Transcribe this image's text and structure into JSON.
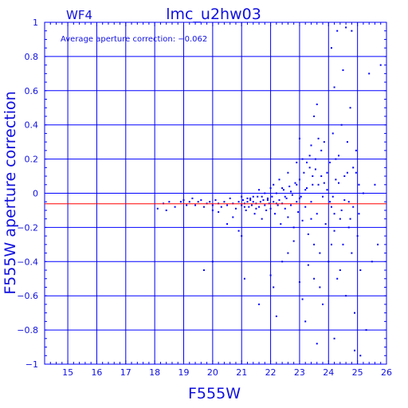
{
  "chart_data": {
    "type": "scatter",
    "title": "lmc_u2hw03",
    "panel_label": "WF4",
    "annotation": "Average aperture correction: −0.062",
    "xlabel": "F555W",
    "ylabel": "F555W aperture correction",
    "xlim": [
      14.2,
      26.0
    ],
    "ylim": [
      -1.0,
      1.0
    ],
    "x_ticks": [
      15,
      16,
      17,
      18,
      19,
      20,
      21,
      22,
      23,
      24,
      25,
      26
    ],
    "y_ticks": [
      -1,
      -0.8,
      -0.6,
      -0.4,
      -0.2,
      0,
      0.2,
      0.4,
      0.6,
      0.8,
      1
    ],
    "y_tick_labels": [
      "−1",
      "−0.8",
      "−0.6",
      "−0.4",
      "−0.2",
      "0",
      "0.2",
      "0.4",
      "0.6",
      "0.8",
      "1"
    ],
    "grid": true,
    "reference_line": {
      "y": -0.062,
      "color": "#ff0000"
    },
    "series_color": "#0000ff",
    "points": [
      [
        18.1,
        -0.09
      ],
      [
        18.3,
        -0.06
      ],
      [
        18.4,
        -0.1
      ],
      [
        18.5,
        -0.05
      ],
      [
        18.7,
        -0.08
      ],
      [
        18.9,
        -0.05
      ],
      [
        19.0,
        -0.04
      ],
      [
        19.1,
        -0.07
      ],
      [
        19.2,
        -0.05
      ],
      [
        19.3,
        -0.03
      ],
      [
        19.4,
        -0.07
      ],
      [
        19.5,
        -0.05
      ],
      [
        19.6,
        -0.04
      ],
      [
        19.7,
        -0.08
      ],
      [
        19.8,
        -0.06
      ],
      [
        19.9,
        -0.05
      ],
      [
        20.0,
        -0.07
      ],
      [
        20.1,
        -0.04
      ],
      [
        20.2,
        -0.06
      ],
      [
        20.3,
        -0.08
      ],
      [
        20.4,
        -0.05
      ],
      [
        20.5,
        -0.07
      ],
      [
        20.6,
        -0.03
      ],
      [
        20.7,
        -0.06
      ],
      [
        20.8,
        -0.09
      ],
      [
        20.9,
        -0.05
      ],
      [
        21.0,
        -0.07
      ],
      [
        21.05,
        -0.04
      ],
      [
        21.1,
        -0.06
      ],
      [
        21.15,
        -0.1
      ],
      [
        21.2,
        -0.05
      ],
      [
        21.25,
        -0.08
      ],
      [
        21.3,
        -0.03
      ],
      [
        21.35,
        -0.07
      ],
      [
        21.4,
        -0.05
      ],
      [
        21.45,
        -0.12
      ],
      [
        21.5,
        -0.06
      ],
      [
        21.55,
        -0.02
      ],
      [
        21.6,
        -0.08
      ],
      [
        21.65,
        -0.05
      ],
      [
        21.7,
        -0.15
      ],
      [
        21.75,
        -0.04
      ],
      [
        21.8,
        -0.07
      ],
      [
        21.85,
        -0.1
      ],
      [
        21.9,
        -0.03
      ],
      [
        21.95,
        -0.06
      ],
      [
        22.0,
        -0.09
      ],
      [
        22.05,
        -0.02
      ],
      [
        22.1,
        -0.05
      ],
      [
        22.15,
        -0.12
      ],
      [
        22.2,
        0.0
      ],
      [
        22.25,
        -0.07
      ],
      [
        22.3,
        -0.04
      ],
      [
        22.35,
        -0.18
      ],
      [
        22.4,
        -0.06
      ],
      [
        22.45,
        0.02
      ],
      [
        22.5,
        -0.09
      ],
      [
        22.55,
        -0.03
      ],
      [
        22.6,
        -0.14
      ],
      [
        22.65,
        0.04
      ],
      [
        22.7,
        -0.07
      ],
      [
        22.75,
        -0.01
      ],
      [
        22.8,
        -0.2
      ],
      [
        22.85,
        0.06
      ],
      [
        22.9,
        -0.05
      ],
      [
        22.95,
        -0.11
      ],
      [
        23.0,
        0.08
      ],
      [
        23.05,
        -0.02
      ],
      [
        23.1,
        -0.16
      ],
      [
        23.15,
        0.12
      ],
      [
        23.2,
        -0.08
      ],
      [
        23.25,
        0.03
      ],
      [
        23.3,
        -0.24
      ],
      [
        23.35,
        0.15
      ],
      [
        23.4,
        -0.05
      ],
      [
        23.45,
        0.1
      ],
      [
        23.5,
        -0.3
      ],
      [
        23.55,
        0.2
      ],
      [
        23.6,
        -0.12
      ],
      [
        23.65,
        0.05
      ],
      [
        23.7,
        -0.35
      ],
      [
        23.75,
        0.25
      ],
      [
        23.8,
        -0.02
      ],
      [
        23.85,
        0.3
      ],
      [
        23.9,
        -0.18
      ],
      [
        23.95,
        0.12
      ],
      [
        24.0,
        -0.4
      ],
      [
        24.05,
        0.18
      ],
      [
        24.1,
        -0.08
      ],
      [
        24.15,
        0.35
      ],
      [
        24.2,
        -0.22
      ],
      [
        24.25,
        0.08
      ],
      [
        24.3,
        -0.5
      ],
      [
        24.35,
        0.22
      ],
      [
        24.4,
        -0.15
      ],
      [
        24.45,
        0.4
      ],
      [
        24.5,
        -0.3
      ],
      [
        24.55,
        0.1
      ],
      [
        24.6,
        -0.6
      ],
      [
        24.65,
        0.3
      ],
      [
        24.7,
        -0.05
      ],
      [
        24.75,
        0.5
      ],
      [
        24.8,
        -0.35
      ],
      [
        24.85,
        0.15
      ],
      [
        24.9,
        -0.7
      ],
      [
        24.95,
        0.25
      ],
      [
        25.0,
        -0.25
      ],
      [
        25.05,
        0.05
      ],
      [
        25.1,
        -0.45
      ],
      [
        25.2,
        0.0
      ],
      [
        25.3,
        -0.8
      ],
      [
        25.5,
        -0.4
      ],
      [
        25.7,
        -0.3
      ],
      [
        25.8,
        0.75
      ],
      [
        25.6,
        0.05
      ],
      [
        25.4,
        0.7
      ],
      [
        24.8,
        0.95
      ],
      [
        24.6,
        0.97
      ],
      [
        24.3,
        0.95
      ],
      [
        24.1,
        0.85
      ],
      [
        24.5,
        0.72
      ],
      [
        24.2,
        0.62
      ],
      [
        23.6,
        0.52
      ],
      [
        23.5,
        0.45
      ],
      [
        23.0,
        0.32
      ],
      [
        23.4,
        0.28
      ],
      [
        22.9,
        0.18
      ],
      [
        22.6,
        0.12
      ],
      [
        22.3,
        0.08
      ],
      [
        22.0,
        0.03
      ],
      [
        21.8,
        0.0
      ],
      [
        21.6,
        0.02
      ],
      [
        21.4,
        -0.02
      ],
      [
        21.2,
        -0.03
      ],
      [
        21.0,
        -0.25
      ],
      [
        20.9,
        -0.22
      ],
      [
        20.7,
        -0.14
      ],
      [
        20.5,
        -0.18
      ],
      [
        20.2,
        -0.11
      ],
      [
        20.0,
        -0.1
      ],
      [
        19.7,
        -0.45
      ],
      [
        20.0,
        -0.4
      ],
      [
        21.1,
        -0.5
      ],
      [
        21.6,
        -0.65
      ],
      [
        22.0,
        -0.48
      ],
      [
        22.1,
        -0.55
      ],
      [
        22.2,
        -0.72
      ],
      [
        22.4,
        -0.4
      ],
      [
        22.6,
        -0.35
      ],
      [
        22.8,
        -0.28
      ],
      [
        23.0,
        -0.52
      ],
      [
        23.1,
        -0.62
      ],
      [
        23.2,
        -0.75
      ],
      [
        23.3,
        -0.42
      ],
      [
        23.6,
        -0.88
      ],
      [
        23.7,
        -0.55
      ],
      [
        24.1,
        -0.3
      ],
      [
        24.2,
        -0.12
      ],
      [
        24.4,
        -0.45
      ],
      [
        24.7,
        -0.2
      ],
      [
        24.9,
        -0.92
      ],
      [
        25.1,
        -0.95
      ],
      [
        24.2,
        -0.85
      ],
      [
        23.8,
        -0.65
      ],
      [
        23.5,
        -0.5
      ],
      [
        23.4,
        -0.15
      ],
      [
        23.2,
        0.02
      ],
      [
        23.0,
        -0.03
      ],
      [
        22.9,
        0.05
      ],
      [
        22.7,
        0.01
      ],
      [
        22.5,
        -0.02
      ],
      [
        22.4,
        0.03
      ],
      [
        22.2,
        -0.06
      ],
      [
        22.1,
        0.05
      ],
      [
        21.9,
        -0.04
      ],
      [
        21.7,
        -0.02
      ],
      [
        21.5,
        -0.09
      ],
      [
        21.3,
        -0.04
      ],
      [
        21.1,
        -0.08
      ],
      [
        21.0,
        -0.02
      ],
      [
        23.1,
        0.2
      ],
      [
        23.25,
        0.18
      ],
      [
        23.35,
        0.22
      ],
      [
        23.45,
        0.05
      ],
      [
        23.55,
        0.14
      ],
      [
        23.65,
        0.32
      ],
      [
        23.75,
        0.1
      ],
      [
        23.85,
        0.06
      ],
      [
        23.95,
        0.02
      ],
      [
        24.05,
        -0.05
      ],
      [
        24.15,
        -0.02
      ],
      [
        24.25,
        0.2
      ],
      [
        24.35,
        0.06
      ],
      [
        24.45,
        -0.1
      ],
      [
        24.55,
        -0.04
      ],
      [
        24.65,
        0.12
      ],
      [
        24.75,
        -0.15
      ],
      [
        24.85,
        -0.08
      ],
      [
        24.95,
        0.12
      ],
      [
        25.05,
        -0.12
      ]
    ]
  }
}
